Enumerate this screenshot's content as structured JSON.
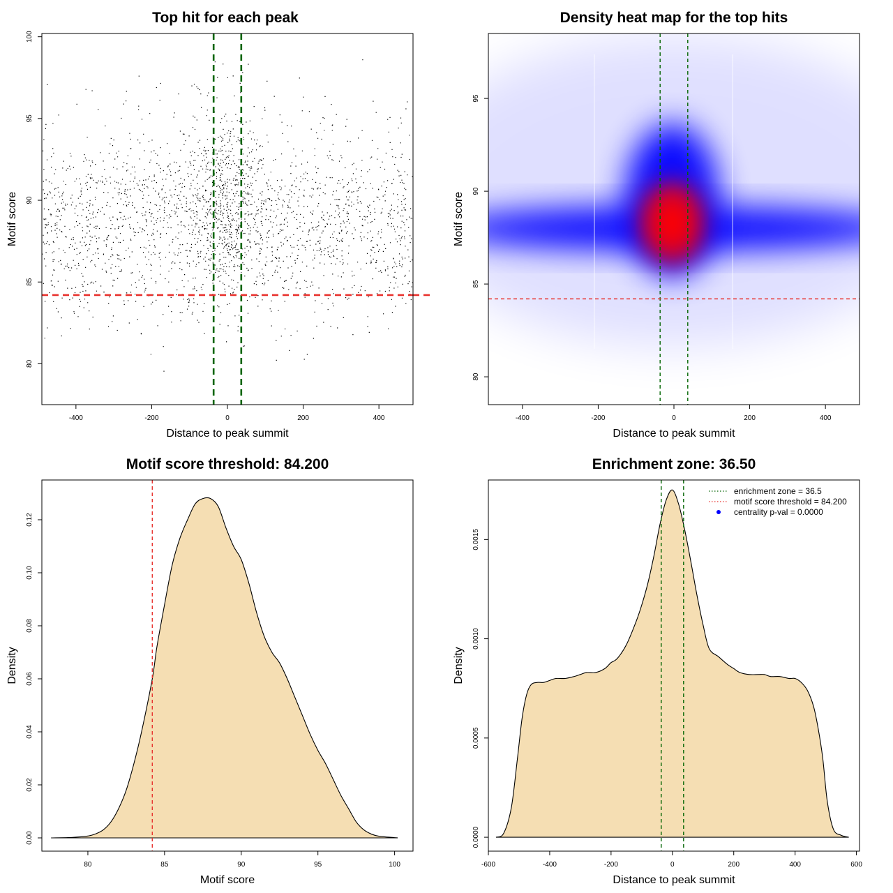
{
  "chart_data": [
    {
      "type": "scatter",
      "title": "Top hit for each peak",
      "xlabel": "Distance to peak summit",
      "ylabel": "Motif score",
      "xlim": [
        -490,
        490
      ],
      "ylim": [
        77.5,
        100.2
      ],
      "xticks": [
        -400,
        -200,
        0,
        200,
        400
      ],
      "yticks": [
        80,
        85,
        90,
        95,
        100
      ],
      "point_color": "#000000",
      "point_distribution": {
        "x_min": -490,
        "x_max": 490,
        "y_min": 79.3,
        "y_max": 99.2,
        "y_mode": 88.0
      },
      "vlines": [
        -36.5,
        36.5
      ],
      "hlines": [
        84.2
      ],
      "vline_color": "#006400",
      "hline_color": "#e8322e"
    },
    {
      "type": "heatmap",
      "title": "Density heat map for the top hits",
      "xlabel": "Distance to peak summit",
      "ylabel": "Motif score",
      "xlim": [
        -490,
        490
      ],
      "ylim": [
        78.5,
        98.5
      ],
      "xticks": [
        -400,
        -200,
        0,
        200,
        400
      ],
      "yticks": [
        80,
        85,
        90,
        95
      ],
      "palette": [
        "#ffffff",
        "#0000ff",
        "#ff0000"
      ],
      "hotspot": {
        "x": -5,
        "y": 88.3
      },
      "vlines": [
        -36.5,
        36.5
      ],
      "hlines": [
        84.2
      ],
      "vline_color": "#006400",
      "hline_color": "#e8322e"
    },
    {
      "type": "area",
      "title": "Motif score threshold: 84.200",
      "xlabel": "Motif score",
      "ylabel": "Density",
      "xlim": [
        77,
        101.2
      ],
      "ylim": [
        -0.005,
        0.135
      ],
      "xticks": [
        80,
        85,
        90,
        95,
        100
      ],
      "yticks": [
        0,
        0.02,
        0.04,
        0.06,
        0.08,
        0.1,
        0.12
      ],
      "ytick_labels": [
        "0.00",
        "0.02",
        "0.04",
        "0.06",
        "0.08",
        "0.10",
        "0.12"
      ],
      "fill_color": "#f5deb3",
      "x": [
        77.6,
        79.0,
        80.0,
        80.5,
        81.0,
        81.5,
        82.0,
        82.5,
        83.0,
        83.5,
        84.2,
        84.5,
        85.0,
        85.5,
        86.0,
        86.5,
        87.0,
        87.5,
        88.0,
        88.5,
        89.0,
        89.5,
        90.0,
        90.5,
        91.0,
        91.5,
        92.0,
        92.5,
        93.0,
        93.5,
        94.0,
        94.5,
        95.0,
        95.5,
        96.0,
        96.5,
        97.0,
        97.5,
        98.0,
        98.5,
        99.0,
        100.0,
        100.2
      ],
      "values": [
        0,
        0.0002,
        0.0007,
        0.0015,
        0.003,
        0.006,
        0.011,
        0.018,
        0.028,
        0.04,
        0.06,
        0.072,
        0.088,
        0.103,
        0.113,
        0.12,
        0.126,
        0.128,
        0.128,
        0.125,
        0.117,
        0.11,
        0.105,
        0.096,
        0.085,
        0.076,
        0.07,
        0.066,
        0.06,
        0.053,
        0.046,
        0.039,
        0.033,
        0.028,
        0.022,
        0.016,
        0.011,
        0.006,
        0.003,
        0.0014,
        0.0006,
        0.0001,
        0
      ],
      "vlines": [
        84.2
      ],
      "vline_color": "#e8322e"
    },
    {
      "type": "area",
      "title": "Enrichment zone: 36.50",
      "xlabel": "Distance to peak summit",
      "ylabel": "Density",
      "xlim": [
        -600,
        610
      ],
      "ylim": [
        -7e-05,
        0.0018
      ],
      "xticks": [
        -600,
        -400,
        -200,
        0,
        200,
        400,
        600
      ],
      "yticks": [
        0,
        0.0005,
        0.001,
        0.0015
      ],
      "ytick_labels": [
        "0.0000",
        "0.0005",
        "0.0010",
        "0.0015"
      ],
      "fill_color": "#f5deb3",
      "x": [
        -575,
        -550,
        -525,
        -505,
        -490,
        -475,
        -460,
        -440,
        -420,
        -400,
        -380,
        -350,
        -320,
        -300,
        -280,
        -250,
        -220,
        -200,
        -180,
        -150,
        -120,
        -100,
        -80,
        -60,
        -40,
        -20,
        0,
        20,
        40,
        60,
        80,
        100,
        120,
        150,
        180,
        200,
        220,
        250,
        280,
        300,
        320,
        350,
        380,
        400,
        420,
        440,
        460,
        475,
        490,
        505,
        525,
        550,
        575
      ],
      "values": [
        0,
        2e-05,
        0.00015,
        0.0004,
        0.0006,
        0.00072,
        0.00077,
        0.00078,
        0.00078,
        0.00079,
        0.0008,
        0.0008,
        0.00081,
        0.00082,
        0.00083,
        0.00083,
        0.00085,
        0.00088,
        0.0009,
        0.00097,
        0.00108,
        0.00117,
        0.00128,
        0.00142,
        0.00158,
        0.0017,
        0.00175,
        0.00168,
        0.00155,
        0.00139,
        0.00122,
        0.00107,
        0.00095,
        0.00091,
        0.00087,
        0.00085,
        0.00083,
        0.00082,
        0.00082,
        0.00082,
        0.00081,
        0.00081,
        0.0008,
        0.0008,
        0.00078,
        0.00074,
        0.00066,
        0.00055,
        0.0004,
        0.00018,
        4e-05,
        1e-05,
        0
      ],
      "vlines": [
        -36.5,
        36.5
      ],
      "vline_color": "#006400",
      "legend": {
        "position": "top-right",
        "entries": [
          {
            "label": "enrichment zone = 36.5",
            "color": "#006400",
            "symbol": "dotted-line"
          },
          {
            "label": "motif score threshold = 84.200",
            "color": "#e8322e",
            "symbol": "dotted-line"
          },
          {
            "label": "centrality p-val = 0.0000",
            "color": "#0000ff",
            "symbol": "dot"
          }
        ]
      }
    }
  ]
}
